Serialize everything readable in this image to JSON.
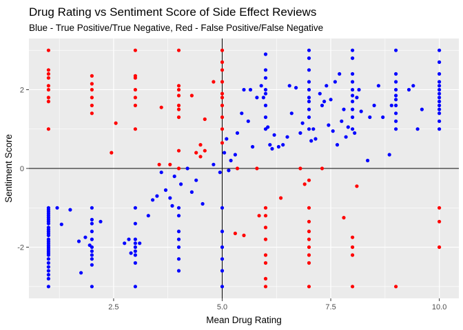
{
  "chart_data": {
    "type": "scatter",
    "title": "Drug Rating vs Sentiment Score of Side Effect Reviews",
    "subtitle": "Blue - True Positive/True Negative, Red - False Positive/False Negative",
    "xlabel": "Mean Drug Rating",
    "ylabel": "Sentiment Score",
    "xlim": [
      0.55,
      10.45
    ],
    "ylim": [
      -3.3,
      3.3
    ],
    "x_ticks": [
      2.5,
      5.0,
      7.5,
      10.0
    ],
    "x_tick_labels": [
      "2.5",
      "5.0",
      "7.5",
      "10.0"
    ],
    "y_ticks": [
      -2,
      0,
      2
    ],
    "y_tick_labels": [
      "-2",
      "0",
      "2"
    ],
    "reference_lines": {
      "x": 5.0,
      "y": 0
    },
    "grid": true,
    "colors": {
      "panel": "#ebebeb",
      "grid": "#ffffff",
      "ref_line": "#000000",
      "true_class": "#0000ff",
      "false_class": "#ff0000"
    },
    "series": [
      {
        "color": "#0000ff",
        "points": [
          [
            1,
            -1
          ],
          [
            1,
            -1.05
          ],
          [
            1,
            -1.1
          ],
          [
            1,
            -1.15
          ],
          [
            1,
            -1.2
          ],
          [
            1,
            -1.25
          ],
          [
            1,
            -1.3
          ],
          [
            1,
            -1.35
          ],
          [
            1,
            -1.4
          ],
          [
            1,
            -1.5
          ],
          [
            1,
            -1.55
          ],
          [
            1,
            -1.6
          ],
          [
            1,
            -1.65
          ],
          [
            1,
            -1.7
          ],
          [
            1,
            -1.8
          ],
          [
            1,
            -1.85
          ],
          [
            1,
            -1.9
          ],
          [
            1,
            -1.95
          ],
          [
            1,
            -2
          ],
          [
            1,
            -2.05
          ],
          [
            1,
            -2.1
          ],
          [
            1,
            -2.15
          ],
          [
            1,
            -2.2
          ],
          [
            1,
            -2.3
          ],
          [
            1,
            -2.4
          ],
          [
            1,
            -2.5
          ],
          [
            1,
            -2.6
          ],
          [
            1,
            -2.7
          ],
          [
            1,
            -2.8
          ],
          [
            1,
            -3
          ],
          [
            1.2,
            -1
          ],
          [
            1.3,
            -1.42
          ],
          [
            1.5,
            -1.05
          ],
          [
            1.7,
            -1.85
          ],
          [
            1.75,
            -2.65
          ],
          [
            1.85,
            -1.75
          ],
          [
            1.95,
            -1.95
          ],
          [
            2,
            -1
          ],
          [
            2,
            -1.3
          ],
          [
            2,
            -1.4
          ],
          [
            2,
            -1.6
          ],
          [
            2,
            -1.8
          ],
          [
            2,
            -2
          ],
          [
            2,
            -2.1
          ],
          [
            2,
            -2.2
          ],
          [
            2,
            -2.3
          ],
          [
            2,
            -2.45
          ],
          [
            2,
            -3
          ],
          [
            2.2,
            -1.35
          ],
          [
            2.75,
            -1.9
          ],
          [
            2.85,
            -1.8
          ],
          [
            2.9,
            -2.15
          ],
          [
            3,
            -1
          ],
          [
            3,
            -1.4
          ],
          [
            3,
            -1.8
          ],
          [
            3,
            -1.9
          ],
          [
            3,
            -2
          ],
          [
            3,
            -2.1
          ],
          [
            3,
            -2.2
          ],
          [
            3,
            -2.4
          ],
          [
            3,
            -3
          ],
          [
            3.1,
            -1.9
          ],
          [
            3.3,
            -1.2
          ],
          [
            3.4,
            -0.8
          ],
          [
            3.5,
            -0.7
          ],
          [
            3.6,
            -0.1
          ],
          [
            3.7,
            -0.55
          ],
          [
            3.8,
            -0.75
          ],
          [
            3.85,
            -0.95
          ],
          [
            3.9,
            -0.2
          ],
          [
            4,
            -1
          ],
          [
            4,
            -1.2
          ],
          [
            4,
            -1.6
          ],
          [
            4,
            -1.8
          ],
          [
            4,
            -2
          ],
          [
            4,
            -2.3
          ],
          [
            4,
            -2.6
          ],
          [
            4.05,
            -0.4
          ],
          [
            4.2,
            0
          ],
          [
            4.3,
            -0.6
          ],
          [
            4.4,
            -0.3
          ],
          [
            4.55,
            -0.9
          ],
          [
            4.8,
            0.1
          ],
          [
            4.95,
            -0.1
          ],
          [
            5,
            -1
          ],
          [
            5,
            -1.6
          ],
          [
            5,
            -2
          ],
          [
            5,
            -2.3
          ],
          [
            5,
            -2.6
          ],
          [
            5,
            -3
          ],
          [
            5.05,
            0.4
          ],
          [
            5.1,
            0.75
          ],
          [
            5.15,
            -0.05
          ],
          [
            5.2,
            0.2
          ],
          [
            5.3,
            0.35
          ],
          [
            5.35,
            0.9
          ],
          [
            5.45,
            1.4
          ],
          [
            5.5,
            2.0
          ],
          [
            5.6,
            1.2
          ],
          [
            5.65,
            2.0
          ],
          [
            5.7,
            0.55
          ],
          [
            5.8,
            1.8
          ],
          [
            5.9,
            2.1
          ],
          [
            5.95,
            1.8
          ],
          [
            6,
            1
          ],
          [
            6,
            1.3
          ],
          [
            6,
            1.6
          ],
          [
            6,
            1.9
          ],
          [
            6,
            2.0
          ],
          [
            6,
            2.3
          ],
          [
            6,
            2.5
          ],
          [
            6,
            2.9
          ],
          [
            6.05,
            1.05
          ],
          [
            6.1,
            0.6
          ],
          [
            6.15,
            0.5
          ],
          [
            6.2,
            0.85
          ],
          [
            6.3,
            0.55
          ],
          [
            6.4,
            0.6
          ],
          [
            6.5,
            0.8
          ],
          [
            6.55,
            2.1
          ],
          [
            6.6,
            1.4
          ],
          [
            6.7,
            2.05
          ],
          [
            6.8,
            0.9
          ],
          [
            6.85,
            1.15
          ],
          [
            7,
            1
          ],
          [
            7,
            1.3
          ],
          [
            7,
            1.5
          ],
          [
            7,
            1.7
          ],
          [
            7,
            1.8
          ],
          [
            7,
            2.0
          ],
          [
            7,
            2.2
          ],
          [
            7,
            2.5
          ],
          [
            7,
            2.8
          ],
          [
            7,
            3.0
          ],
          [
            7.05,
            0.7
          ],
          [
            7.1,
            1.0
          ],
          [
            7.15,
            0.75
          ],
          [
            7.25,
            1.9
          ],
          [
            7.3,
            1.6
          ],
          [
            7.35,
            1.7
          ],
          [
            7.4,
            2.1
          ],
          [
            7.45,
            1.1
          ],
          [
            7.5,
            1.75
          ],
          [
            7.55,
            0.95
          ],
          [
            7.6,
            2.2
          ],
          [
            7.65,
            0.6
          ],
          [
            7.7,
            2.4
          ],
          [
            7.75,
            1.2
          ],
          [
            7.8,
            1.5
          ],
          [
            7.85,
            0.8
          ],
          [
            7.9,
            1.05
          ],
          [
            8,
            1
          ],
          [
            8,
            1.3
          ],
          [
            8,
            1.5
          ],
          [
            8,
            1.7
          ],
          [
            8,
            1.85
          ],
          [
            8,
            2.0
          ],
          [
            8,
            2.2
          ],
          [
            8,
            2.4
          ],
          [
            8,
            2.8
          ],
          [
            8,
            3.0
          ],
          [
            8.05,
            0.9
          ],
          [
            8.1,
            1.8
          ],
          [
            8.15,
            2.0
          ],
          [
            8.2,
            1.45
          ],
          [
            8.35,
            0.2
          ],
          [
            8.4,
            1.3
          ],
          [
            8.5,
            1.6
          ],
          [
            8.6,
            2.1
          ],
          [
            8.7,
            1.3
          ],
          [
            8.85,
            0.35
          ],
          [
            8.9,
            1.6
          ],
          [
            9,
            1
          ],
          [
            9,
            1.2
          ],
          [
            9,
            1.4
          ],
          [
            9,
            1.6
          ],
          [
            9,
            1.75
          ],
          [
            9,
            1.85
          ],
          [
            9,
            2.0
          ],
          [
            9,
            2.2
          ],
          [
            9,
            2.4
          ],
          [
            9,
            3.0
          ],
          [
            9.3,
            2.0
          ],
          [
            9.4,
            2.1
          ],
          [
            9.5,
            1.0
          ],
          [
            9.6,
            1.5
          ],
          [
            10,
            1
          ],
          [
            10,
            1.2
          ],
          [
            10,
            1.4
          ],
          [
            10,
            1.5
          ],
          [
            10,
            1.6
          ],
          [
            10,
            1.7
          ],
          [
            10,
            1.8
          ],
          [
            10,
            1.9
          ],
          [
            10,
            2.0
          ],
          [
            10,
            2.1
          ],
          [
            10,
            2.2
          ],
          [
            10,
            2.4
          ],
          [
            10,
            2.7
          ],
          [
            10,
            3.0
          ]
        ]
      },
      {
        "color": "#ff0000",
        "points": [
          [
            1,
            1
          ],
          [
            1,
            1.7
          ],
          [
            1,
            1.8
          ],
          [
            1,
            2.0
          ],
          [
            1,
            2.1
          ],
          [
            1,
            2.3
          ],
          [
            1,
            2.4
          ],
          [
            1,
            2.5
          ],
          [
            1,
            3.0
          ],
          [
            2,
            1.4
          ],
          [
            2,
            1.6
          ],
          [
            2,
            1.8
          ],
          [
            2,
            2.0
          ],
          [
            2,
            2.15
          ],
          [
            2,
            2.35
          ],
          [
            2.45,
            0.4
          ],
          [
            2.55,
            1.15
          ],
          [
            3,
            1
          ],
          [
            3,
            1.6
          ],
          [
            3,
            1.8
          ],
          [
            3,
            2.0
          ],
          [
            3,
            2.3
          ],
          [
            3,
            2.35
          ],
          [
            3,
            3.0
          ],
          [
            3.55,
            0.1
          ],
          [
            3.6,
            1.55
          ],
          [
            3.8,
            0.1
          ],
          [
            4,
            0
          ],
          [
            4,
            0.45
          ],
          [
            4,
            1.3
          ],
          [
            4,
            1.5
          ],
          [
            4,
            1.6
          ],
          [
            4,
            1.85
          ],
          [
            4,
            2.0
          ],
          [
            4,
            2.1
          ],
          [
            4,
            3.0
          ],
          [
            4.3,
            1.85
          ],
          [
            4.4,
            0.4
          ],
          [
            4.5,
            0.6
          ],
          [
            4.5,
            0.3
          ],
          [
            4.6,
            0.45
          ],
          [
            4.6,
            1.25
          ],
          [
            4.8,
            2.2
          ],
          [
            5,
            0.65
          ],
          [
            5,
            1.0
          ],
          [
            5,
            1.3
          ],
          [
            5,
            1.6
          ],
          [
            5,
            1.8
          ],
          [
            5,
            1.9
          ],
          [
            5,
            2.2
          ],
          [
            5,
            2.5
          ],
          [
            5,
            2.7
          ],
          [
            5,
            3.0
          ],
          [
            5.35,
            0
          ],
          [
            5.3,
            -1.65
          ],
          [
            5.5,
            -1.7
          ],
          [
            5.8,
            0
          ],
          [
            5.85,
            -1.2
          ],
          [
            6,
            -1
          ],
          [
            6,
            -1.2
          ],
          [
            6,
            -1.5
          ],
          [
            6,
            -1.8
          ],
          [
            6,
            -2.2
          ],
          [
            6,
            -2.4
          ],
          [
            6,
            -2.8
          ],
          [
            6,
            -3
          ],
          [
            6.35,
            -0.75
          ],
          [
            6.8,
            0
          ],
          [
            6.9,
            -0.4
          ],
          [
            7,
            -0.3
          ],
          [
            7,
            -1
          ],
          [
            7,
            -1.35
          ],
          [
            7,
            -1.6
          ],
          [
            7,
            -1.8
          ],
          [
            7,
            -2.0
          ],
          [
            7,
            -2.2
          ],
          [
            7,
            -2.4
          ],
          [
            7,
            -3.0
          ],
          [
            7.3,
            0
          ],
          [
            7.8,
            -1.25
          ],
          [
            8,
            -1.75
          ],
          [
            8,
            -2.0
          ],
          [
            8,
            -2.2
          ],
          [
            8,
            -3.0
          ],
          [
            8.1,
            -0.45
          ],
          [
            9,
            -3.0
          ],
          [
            10,
            -1
          ],
          [
            10,
            -1.35
          ],
          [
            10,
            -2.0
          ]
        ]
      }
    ]
  }
}
